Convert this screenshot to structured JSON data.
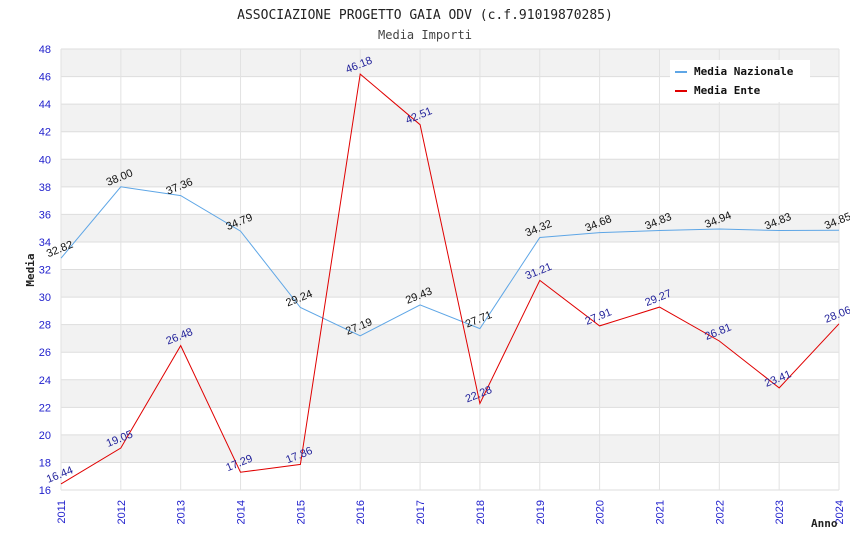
{
  "chart_data": {
    "type": "line",
    "title": "ASSOCIAZIONE PROGETTO GAIA ODV (c.f.91019870285)",
    "subtitle": "Media Importi",
    "xlabel": "Anno",
    "ylabel": "Media",
    "ylim": [
      16,
      48
    ],
    "y_ticks": [
      16,
      18,
      20,
      22,
      24,
      26,
      28,
      30,
      32,
      34,
      36,
      38,
      40,
      42,
      44,
      46,
      48
    ],
    "categories": [
      "2011",
      "2012",
      "2013",
      "2014",
      "2015",
      "2016",
      "2017",
      "2018",
      "2019",
      "2020",
      "2021",
      "2022",
      "2023",
      "2024"
    ],
    "grid": true,
    "legend_position": "top-right",
    "series": [
      {
        "name": "Media Nazionale",
        "color": "#5ea6e6",
        "label_color": "#111111",
        "values": [
          32.82,
          38.0,
          37.36,
          34.79,
          29.24,
          27.19,
          29.43,
          27.71,
          34.32,
          34.68,
          34.83,
          34.94,
          34.83,
          34.85
        ],
        "labels": [
          "32.82",
          "38.00",
          "37.36",
          "34.79",
          "29.24",
          "27.19",
          "29.43",
          "27.71",
          "34.32",
          "34.68",
          "34.83",
          "34.94",
          "34.83",
          "34.85"
        ]
      },
      {
        "name": "Media Ente",
        "color": "#e00000",
        "label_color": "#1f1f99",
        "values": [
          16.44,
          19.05,
          26.48,
          17.29,
          17.86,
          46.18,
          42.51,
          22.28,
          31.21,
          27.91,
          29.27,
          26.81,
          23.41,
          28.06
        ],
        "labels": [
          "16.44",
          "19.05",
          "26.48",
          "17.29",
          "17.86",
          "46.18",
          "42.51",
          "22.28",
          "31.21",
          "27.91",
          "29.27",
          "26.81",
          "23.41",
          "28.06"
        ]
      }
    ]
  }
}
